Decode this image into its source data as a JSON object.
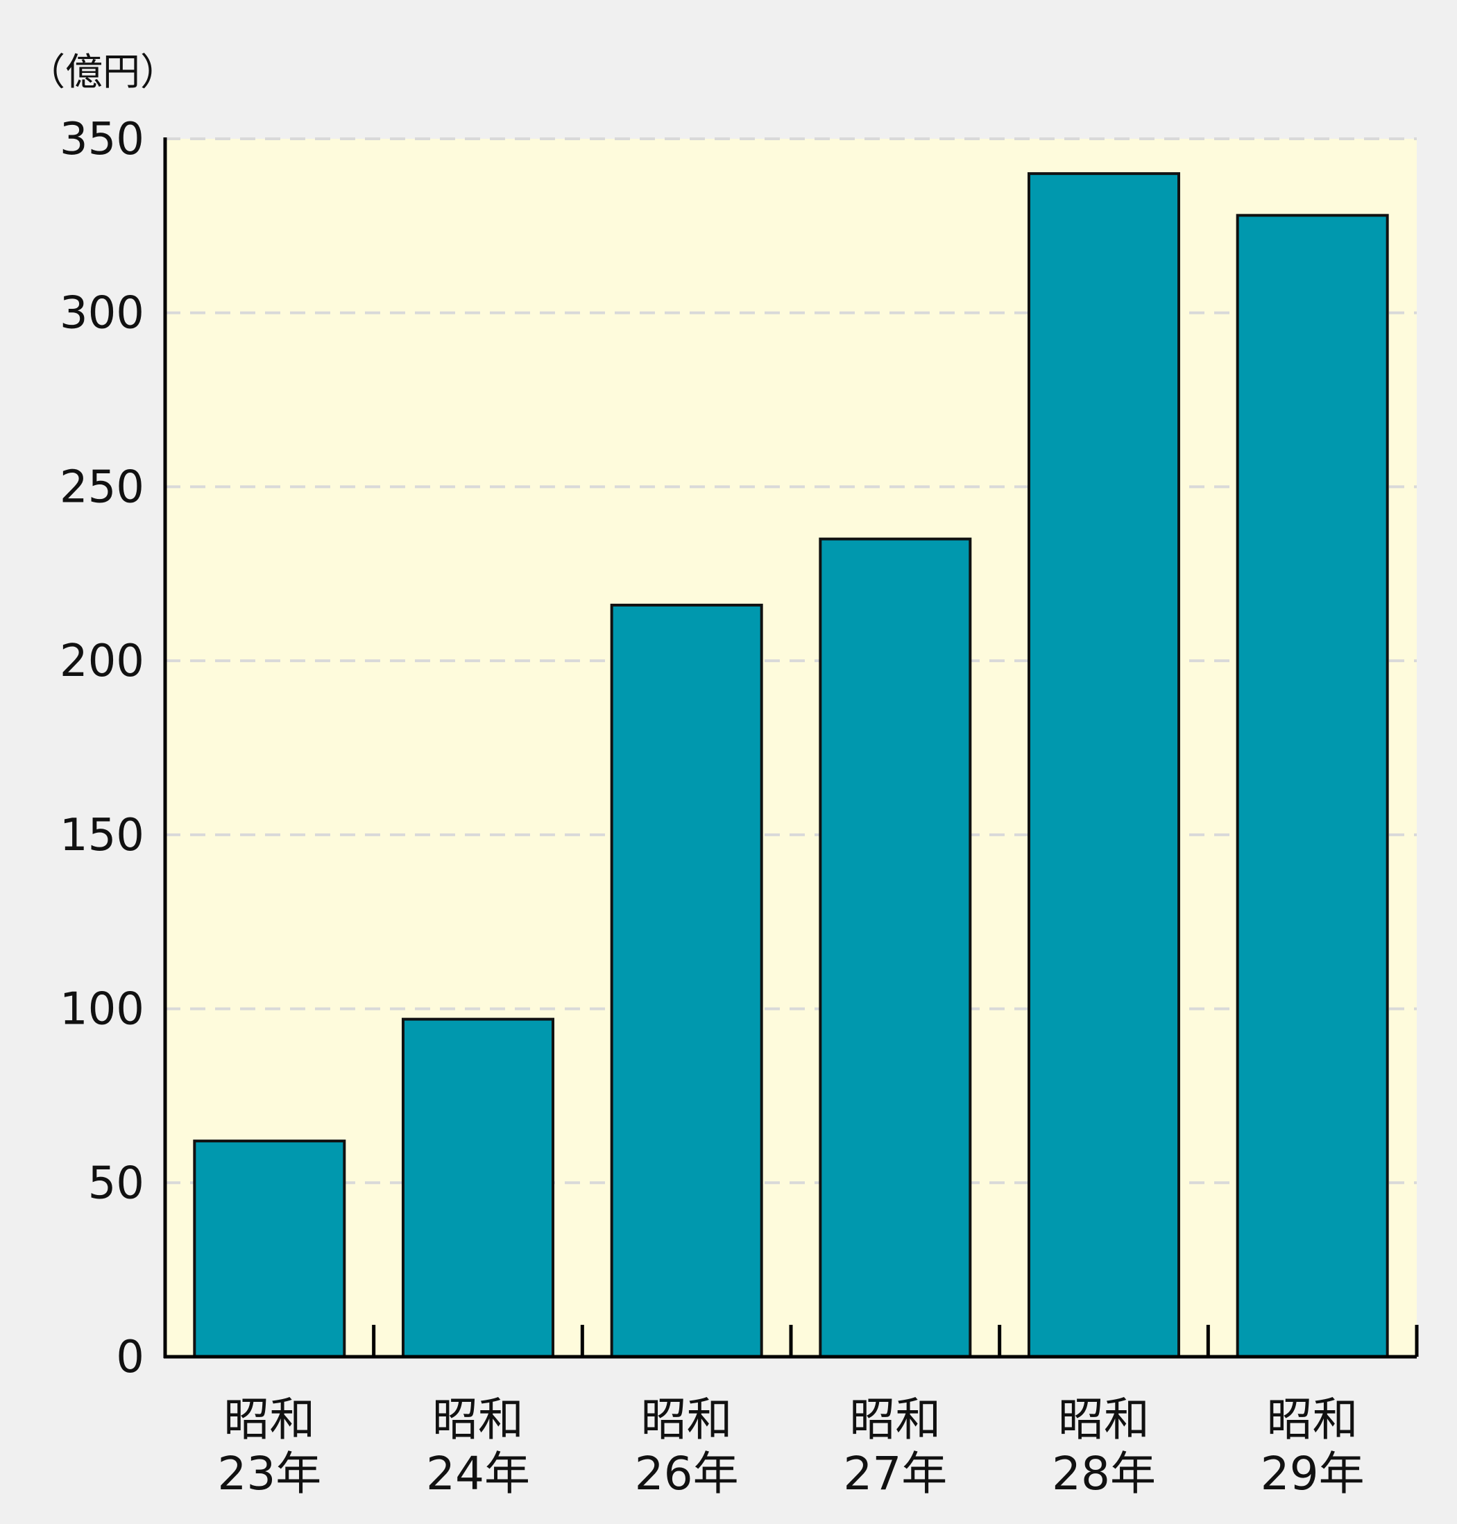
{
  "chart_data": {
    "type": "bar",
    "title": "",
    "xlabel": "",
    "ylabel": "（億円）",
    "ylim": [
      0,
      350
    ],
    "yticks": [
      0,
      50,
      100,
      150,
      200,
      250,
      300,
      350
    ],
    "grid": true,
    "categories": [
      [
        "昭和",
        "23年"
      ],
      [
        "昭和",
        "24年"
      ],
      [
        "昭和",
        "26年"
      ],
      [
        "昭和",
        "27年"
      ],
      [
        "昭和",
        "28年"
      ],
      [
        "昭和",
        "29年"
      ]
    ],
    "values": [
      62,
      97,
      216,
      235,
      340,
      328
    ],
    "colors": {
      "bar": "#0098ae",
      "plot_bg": "#fefbdc",
      "page_bg": "#f0f0f0",
      "grid": "#d9d9d9",
      "axis": "#000000"
    }
  }
}
